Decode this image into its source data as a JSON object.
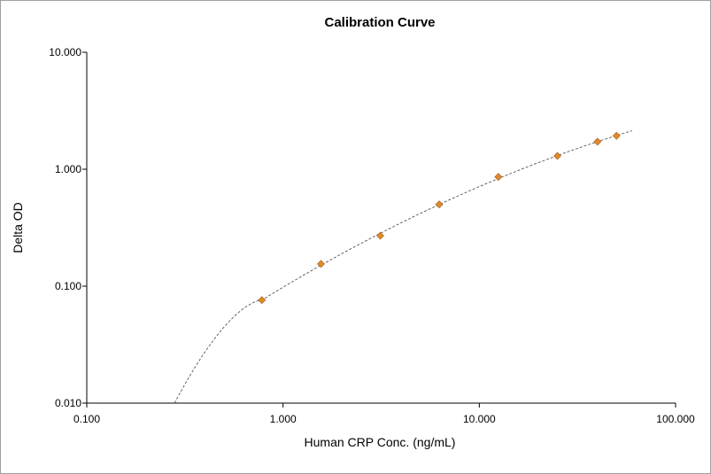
{
  "chart_data": {
    "type": "scatter",
    "title": "Calibration Curve",
    "xlabel": "Human CRP Conc. (ng/mL)",
    "ylabel": "Delta OD",
    "x_scale": "log",
    "y_scale": "log",
    "xlim": [
      0.1,
      100
    ],
    "ylim": [
      0.01,
      10
    ],
    "x_ticks": [
      "0.100",
      "1.000",
      "10.000",
      "100.000"
    ],
    "y_ticks": [
      "0.010",
      "0.100",
      "1.000",
      "10.000"
    ],
    "grid": false,
    "points": [
      {
        "x": 0.78,
        "y": 0.076
      },
      {
        "x": 1.56,
        "y": 0.155
      },
      {
        "x": 3.13,
        "y": 0.27
      },
      {
        "x": 6.25,
        "y": 0.5
      },
      {
        "x": 12.5,
        "y": 0.86
      },
      {
        "x": 25,
        "y": 1.3
      },
      {
        "x": 40,
        "y": 1.72
      },
      {
        "x": 50,
        "y": 1.93
      }
    ],
    "fit": {
      "style": "dashed",
      "x_range": [
        0.28,
        60
      ]
    },
    "colors": {
      "marker": "#e08a2c",
      "fit": "#555555",
      "axis": "#000000"
    }
  }
}
